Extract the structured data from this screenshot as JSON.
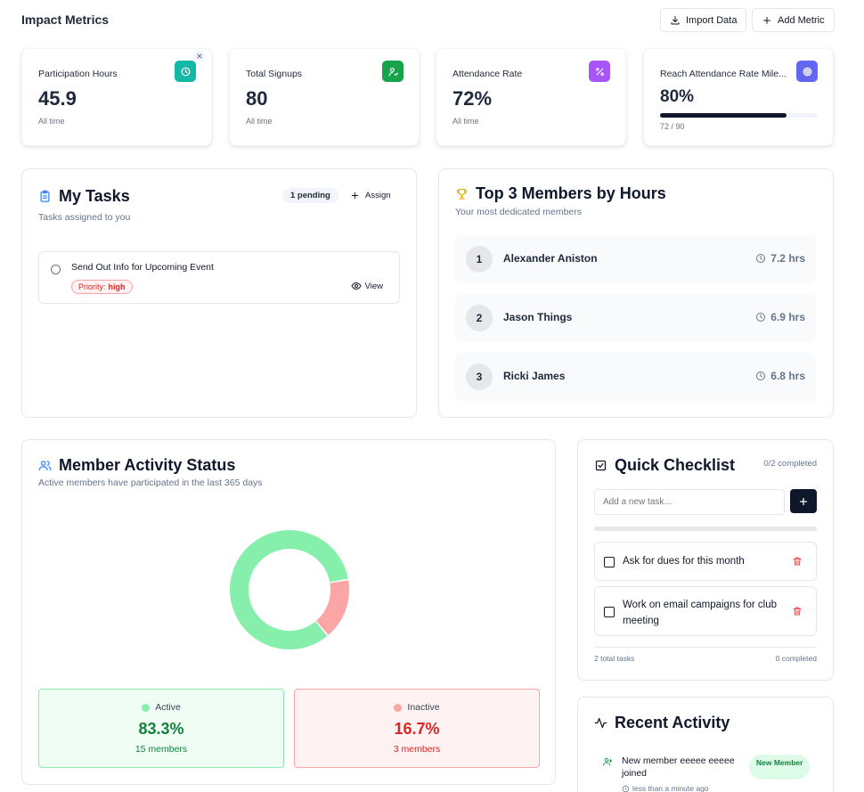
{
  "header": {
    "title": "Impact Metrics",
    "import_label": "Import Data",
    "add_label": "Add Metric"
  },
  "metrics": [
    {
      "label": "Participation Hours",
      "value": "45.9",
      "sub": "All time",
      "icon": "clock-icon",
      "color": "#14b8a6"
    },
    {
      "label": "Total Signups",
      "value": "80",
      "sub": "All time",
      "icon": "user-check-icon",
      "color": "#16a34a"
    },
    {
      "label": "Attendance Rate",
      "value": "72%",
      "sub": "All time",
      "icon": "percent-icon",
      "color": "#a855f7"
    },
    {
      "label": "Reach Attendance Rate Mile...",
      "value": "80%",
      "sub": "72 / 90",
      "icon": "target-icon",
      "color": "#6366f1",
      "progress": 0.8
    }
  ],
  "tasks": {
    "title": "My Tasks",
    "subtitle": "Tasks assigned to you",
    "pending_badge": "1 pending",
    "assign_label": "Assign",
    "items": [
      {
        "title": "Send Out Info for Upcoming Event",
        "priority_label": "Priority:",
        "priority": "high",
        "view_label": "View"
      }
    ]
  },
  "top_members": {
    "title": "Top 3 Members by Hours",
    "subtitle": "Your most dedicated members",
    "members": [
      {
        "rank": "1",
        "name": "Alexander Aniston",
        "hours": "7.2 hrs"
      },
      {
        "rank": "2",
        "name": "Jason Things",
        "hours": "6.9 hrs"
      },
      {
        "rank": "3",
        "name": "Ricki James",
        "hours": "6.8 hrs"
      }
    ]
  },
  "activity_status": {
    "title": "Member Activity Status",
    "subtitle": "Active members have participated in the last 365 days",
    "active": {
      "label": "Active",
      "percent": "83.3%",
      "members": "15 members",
      "color": "#86efac",
      "text_color": "#15803d"
    },
    "inactive": {
      "label": "Inactive",
      "percent": "16.7%",
      "members": "3 members",
      "color": "#fca5a5",
      "text_color": "#dc2626"
    },
    "chart_data": {
      "type": "pie",
      "categories": [
        "Active",
        "Inactive"
      ],
      "values": [
        83.3,
        16.7
      ]
    }
  },
  "checklist": {
    "title": "Quick Checklist",
    "progress_text": "0/2 completed",
    "input_placeholder": "Add a new task...",
    "items": [
      {
        "text": "Ask for dues for this month"
      },
      {
        "text": "Work on email campaigns for club meeting"
      }
    ],
    "total_text": "2 total tasks",
    "completed_text": "0 completed"
  },
  "recent_activity": {
    "title": "Recent Activity",
    "items": [
      {
        "text": "New member eeeee eeeee joined",
        "time": "less than a minute ago",
        "badge": "New Member"
      }
    ]
  }
}
